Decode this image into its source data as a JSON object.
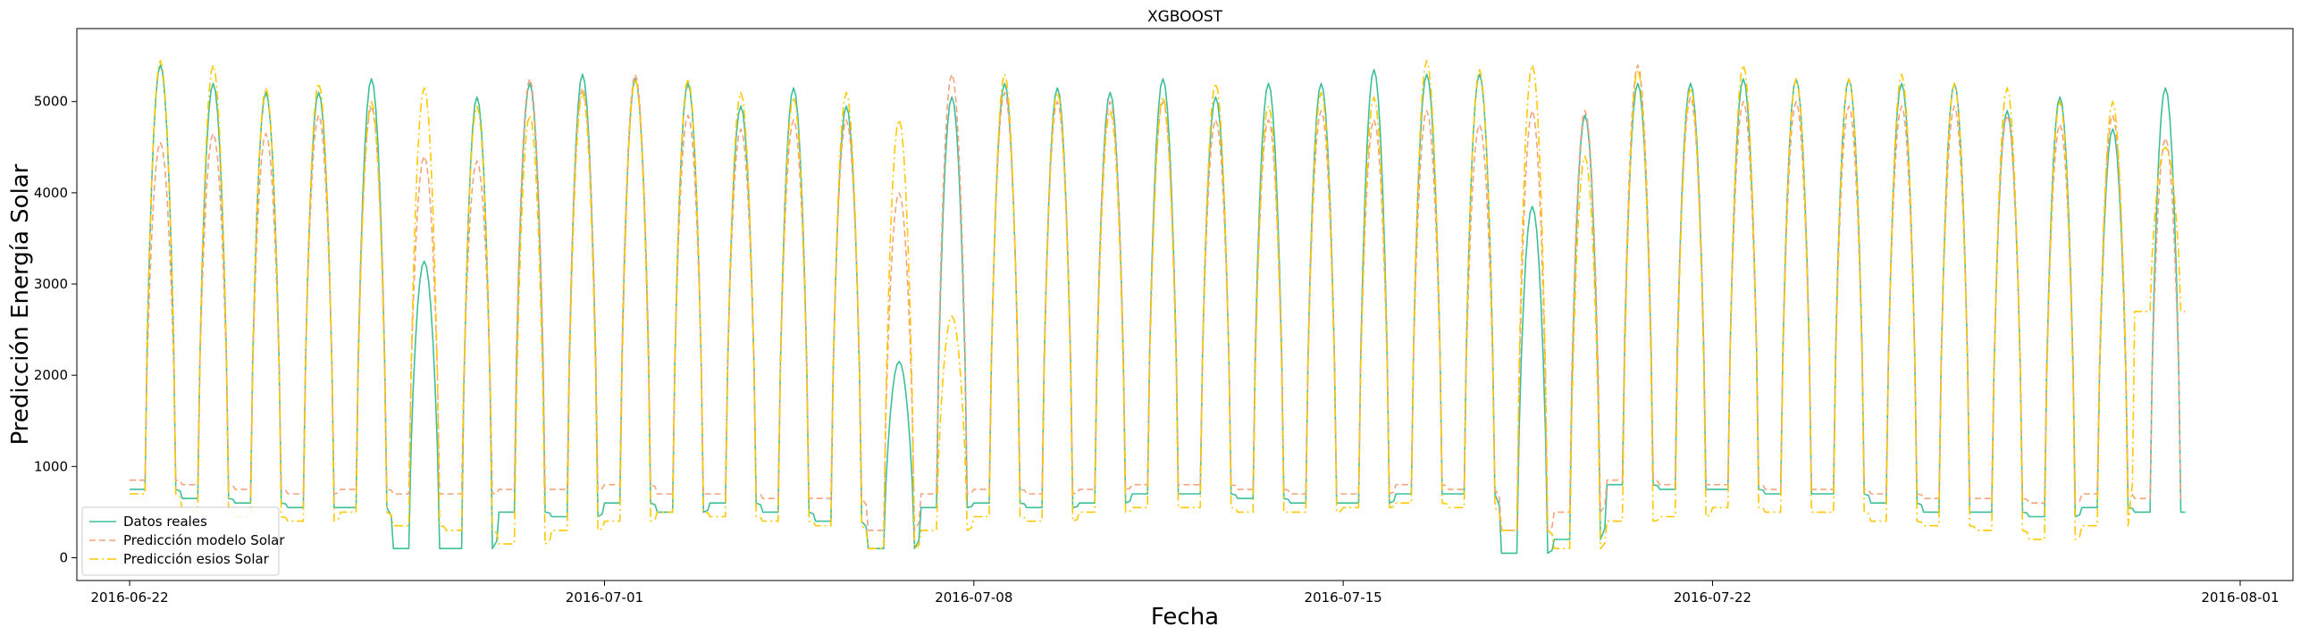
{
  "chart_data": {
    "type": "line",
    "title": "XGBOOST",
    "xlabel": "Fecha",
    "ylabel": "Predicción Energía Solar",
    "x_start": "2016-06-22",
    "x_end": "2016-07-31",
    "xlim": [
      "2016-06-21",
      "2016-08-02"
    ],
    "ylim": [
      -250,
      5800
    ],
    "x_ticks": [
      "2016-06-22",
      "2016-07-01",
      "2016-07-08",
      "2016-07-15",
      "2016-07-22",
      "2016-08-01"
    ],
    "y_ticks": [
      0,
      1000,
      2000,
      3000,
      4000,
      5000
    ],
    "grid": false,
    "legend_position": "lower-left",
    "series": [
      {
        "name": "Datos reales",
        "color": "#3dbf9a",
        "dash": "solid",
        "daily_peaks": [
          5400,
          5200,
          5100,
          5100,
          5250,
          3250,
          5050,
          5200,
          5300,
          5250,
          5200,
          4950,
          5150,
          4950,
          2150,
          5050,
          5200,
          5150,
          5100,
          5250,
          5050,
          5200,
          5200,
          5350,
          5300,
          5300,
          3850,
          4850,
          5200,
          5200,
          5250,
          5250,
          5250,
          5200,
          5200,
          4900,
          5050,
          4700,
          5150
        ],
        "daily_troughs": [
          750,
          650,
          600,
          550,
          550,
          100,
          100,
          500,
          450,
          600,
          500,
          600,
          500,
          400,
          100,
          550,
          600,
          550,
          600,
          700,
          700,
          650,
          600,
          600,
          700,
          700,
          50,
          200,
          800,
          750,
          750,
          700,
          700,
          600,
          500,
          500,
          450,
          550,
          500
        ]
      },
      {
        "name": "Predicción modelo Solar",
        "color": "#f4a37c",
        "dash": "dashed",
        "daily_peaks": [
          4550,
          4650,
          4650,
          4850,
          4950,
          4400,
          4350,
          5250,
          5150,
          5300,
          4850,
          4700,
          4800,
          4800,
          4000,
          5300,
          5100,
          5000,
          5000,
          5000,
          4800,
          4800,
          4900,
          4800,
          4900,
          4750,
          4900,
          4900,
          5400,
          5050,
          5000,
          5000,
          4950,
          4950,
          4950,
          4850,
          4750,
          4850,
          4600
        ],
        "daily_troughs": [
          850,
          800,
          750,
          700,
          750,
          700,
          700,
          750,
          750,
          800,
          700,
          700,
          650,
          650,
          300,
          700,
          750,
          700,
          750,
          800,
          800,
          750,
          700,
          700,
          800,
          750,
          300,
          500,
          850,
          800,
          800,
          750,
          750,
          700,
          650,
          650,
          600,
          700,
          650
        ]
      },
      {
        "name": "Predicción esios Solar",
        "color": "#ffc800",
        "dash": "dashdot",
        "daily_peaks": [
          5450,
          5400,
          5150,
          5200,
          5000,
          5150,
          4950,
          4850,
          5100,
          5250,
          5250,
          5100,
          5050,
          5100,
          4800,
          2650,
          5300,
          5100,
          4900,
          5050,
          5200,
          4950,
          5100,
          5050,
          5450,
          5350,
          5400,
          4400,
          5350,
          5150,
          5400,
          5250,
          5250,
          5300,
          5200,
          5150,
          5000,
          5000,
          4500
        ],
        "daily_troughs": [
          700,
          500,
          450,
          400,
          500,
          350,
          300,
          150,
          300,
          400,
          500,
          450,
          400,
          350,
          100,
          300,
          450,
          400,
          500,
          550,
          550,
          500,
          500,
          550,
          600,
          550,
          300,
          100,
          400,
          450,
          550,
          500,
          500,
          400,
          350,
          300,
          200,
          350,
          2700
        ]
      }
    ]
  }
}
